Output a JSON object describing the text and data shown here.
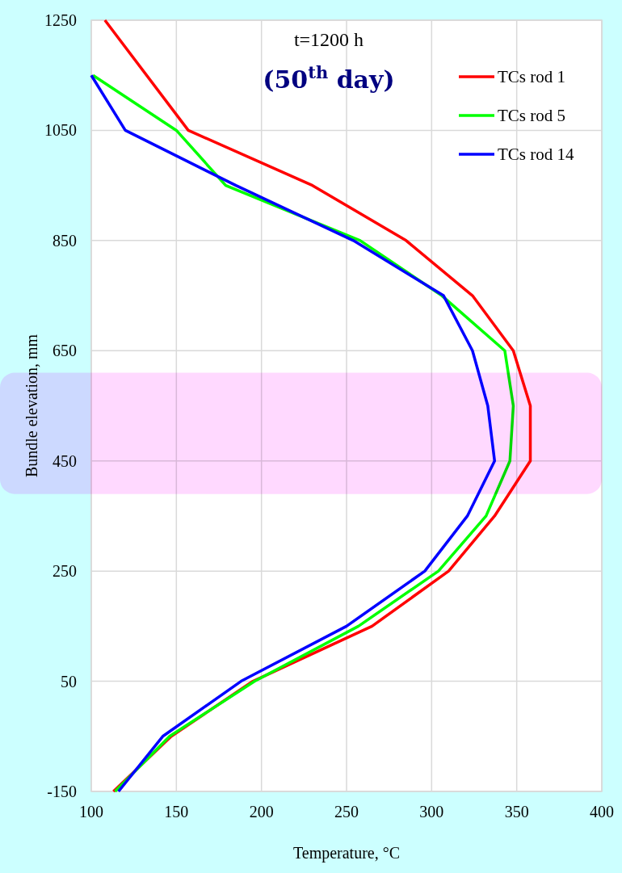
{
  "chart_data": {
    "type": "line",
    "title": "t=1200 h",
    "subtitle": "(50$^{th}$ day)",
    "xlabel": "Temperature, °C",
    "ylabel": "Bundle elevation, mm",
    "xlim": [
      100,
      400
    ],
    "xticks": [
      100,
      150,
      200,
      250,
      300,
      350,
      400
    ],
    "ylim": [
      -150,
      1250
    ],
    "yticks": [
      -150,
      50,
      250,
      450,
      650,
      850,
      1050,
      1250
    ],
    "grid": true,
    "legend": "top right",
    "line_style": "solid",
    "marker": "none",
    "bands": [
      {
        "axis": "y",
        "from": 390,
        "to": 610,
        "color": "#ffccff"
      }
    ],
    "series": [
      {
        "name": "TCs rod 1",
        "color": "#ff0000",
        "x": [
          108,
          157,
          230,
          285,
          324,
          348,
          358,
          358,
          337,
          310,
          265,
          195,
          147,
          113
        ],
        "values": [
          1250,
          1050,
          950,
          850,
          750,
          650,
          550,
          450,
          350,
          250,
          150,
          50,
          -50,
          -150
        ]
      },
      {
        "name": "TCs rod 5",
        "color": "#00ff00",
        "x": [
          101,
          150,
          179,
          258,
          306,
          343,
          348,
          346,
          332,
          304,
          257,
          196,
          146,
          114
        ],
        "values": [
          1150,
          1050,
          950,
          850,
          750,
          650,
          550,
          450,
          350,
          250,
          150,
          50,
          -50,
          -150
        ]
      },
      {
        "name": "TCs rod 14",
        "color": "#0000ff",
        "x": [
          100,
          120,
          185,
          254,
          307,
          324,
          333,
          337,
          321,
          296,
          250,
          188,
          142,
          116
        ],
        "values": [
          1150,
          1050,
          950,
          850,
          750,
          650,
          550,
          450,
          350,
          250,
          150,
          50,
          -50,
          -150
        ]
      }
    ]
  }
}
